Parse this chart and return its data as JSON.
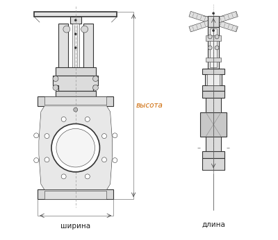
{
  "bg_color": "#ffffff",
  "line_color": "#333333",
  "dim_color": "#555555",
  "label_color": "#222222",
  "fig_width": 4.0,
  "fig_height": 3.46,
  "dpi": 100,
  "label_vysota": "высота",
  "label_shirina": "ширина",
  "label_dlina": "длина",
  "font_size": 7.5
}
